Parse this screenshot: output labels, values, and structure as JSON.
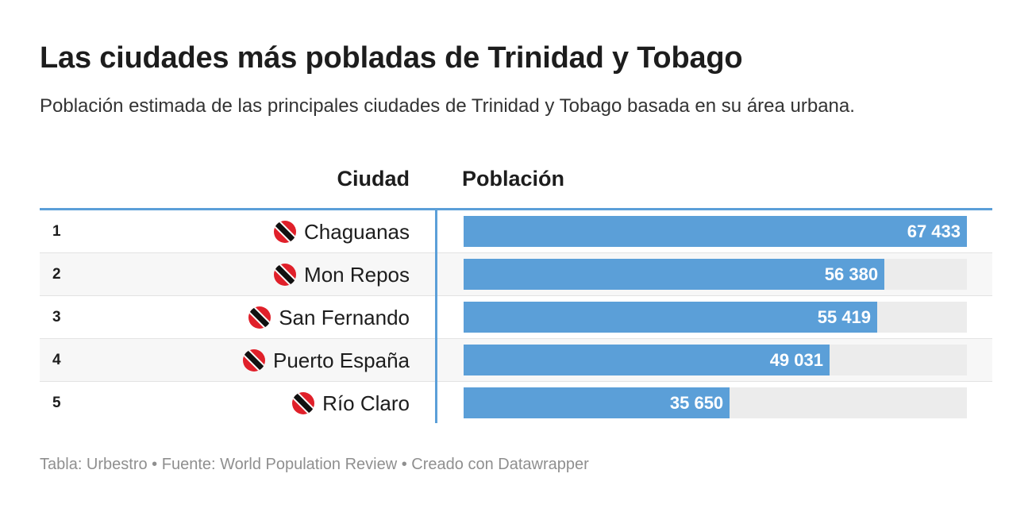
{
  "title": "Las ciudades más pobladas de Trinidad y Tobago",
  "subtitle": "Población estimada de las principales ciudades de Trinidad y Tobago basada en su área urbana.",
  "columns": {
    "city": "Ciudad",
    "population": "Población"
  },
  "footer": "Tabla: Urbestro • Fuente: World Population Review • Creado con Datawrapper",
  "colors": {
    "bar": "#5b9fd8",
    "track": "#ececec",
    "accent_line": "#5b9fd8",
    "flag_red": "#e0202a"
  },
  "chart_data": {
    "type": "table",
    "columns": [
      "Ciudad",
      "Población"
    ],
    "rows": [
      {
        "rank": "1",
        "city": "Chaguanas",
        "flag_icon": "trinidad-and-tobago-flag-icon",
        "value": 67433,
        "label": "67 433"
      },
      {
        "rank": "2",
        "city": "Mon Repos",
        "flag_icon": "trinidad-and-tobago-flag-icon",
        "value": 56380,
        "label": "56 380"
      },
      {
        "rank": "3",
        "city": "San Fernando",
        "flag_icon": "trinidad-and-tobago-flag-icon",
        "value": 55419,
        "label": "55 419"
      },
      {
        "rank": "4",
        "city": "Puerto España",
        "flag_icon": "trinidad-and-tobago-flag-icon",
        "value": 49031,
        "label": "49 031"
      },
      {
        "rank": "5",
        "city": "Río Claro",
        "flag_icon": "trinidad-and-tobago-flag-icon",
        "value": 35650,
        "label": "35 650"
      }
    ]
  }
}
